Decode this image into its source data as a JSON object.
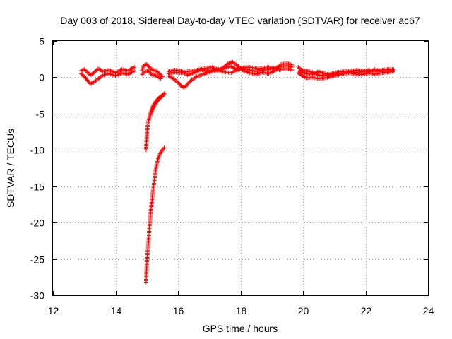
{
  "chart_data": {
    "type": "scatter",
    "title": "Day 003 of 2018, Sidereal Day-to-day VTEC variation (SDTVAR) for receiver ac67",
    "xlabel": "GPS time / hours",
    "ylabel": "SDTVAR / TECUs",
    "xlim": [
      12,
      24
    ],
    "ylim": [
      -30,
      5
    ],
    "xticks": [
      "12",
      "14",
      "16",
      "18",
      "20",
      "22",
      "24"
    ],
    "yticks": [
      "5",
      "0",
      "-5",
      "-10",
      "-15",
      "-20",
      "-25",
      "-30"
    ],
    "grid": true,
    "marker": "+",
    "color": "#ff0000",
    "series": [
      {
        "name": "",
        "tracks": [
          [
            [
              12.9,
              0.9
            ],
            [
              13.0,
              1.1
            ],
            [
              13.1,
              0.7
            ],
            [
              13.2,
              0.3
            ],
            [
              13.3,
              0.6
            ],
            [
              13.45,
              1.2
            ],
            [
              13.6,
              0.8
            ],
            [
              13.8,
              1.0
            ],
            [
              14.0,
              0.6
            ],
            [
              14.2,
              1.1
            ],
            [
              14.4,
              0.9
            ],
            [
              14.6,
              1.4
            ]
          ],
          [
            [
              12.9,
              0.5
            ],
            [
              13.0,
              0.1
            ],
            [
              13.1,
              -0.4
            ],
            [
              13.2,
              -0.9
            ],
            [
              13.3,
              -0.7
            ],
            [
              13.45,
              -0.2
            ],
            [
              13.6,
              0.3
            ],
            [
              13.8,
              0.5
            ],
            [
              14.0,
              0.2
            ],
            [
              14.2,
              0.6
            ],
            [
              14.4,
              0.4
            ],
            [
              14.6,
              0.9
            ]
          ],
          [
            [
              14.85,
              1.0
            ],
            [
              14.9,
              1.6
            ],
            [
              15.0,
              1.8
            ],
            [
              15.1,
              1.3
            ],
            [
              15.2,
              1.0
            ],
            [
              15.3,
              0.9
            ],
            [
              15.4,
              0.5
            ],
            [
              15.5,
              0.1
            ]
          ],
          [
            [
              14.85,
              0.4
            ],
            [
              14.95,
              0.8
            ],
            [
              15.05,
              0.9
            ],
            [
              15.15,
              0.4
            ],
            [
              15.25,
              0.3
            ],
            [
              15.35,
              0.1
            ],
            [
              15.45,
              -0.2
            ]
          ],
          [
            [
              14.98,
              -10.0
            ],
            [
              15.0,
              -8.5
            ],
            [
              15.02,
              -7.0
            ],
            [
              15.05,
              -6.2
            ],
            [
              15.08,
              -5.6
            ],
            [
              15.12,
              -5.0
            ],
            [
              15.16,
              -4.5
            ],
            [
              15.2,
              -4.0
            ],
            [
              15.25,
              -3.6
            ],
            [
              15.3,
              -3.3
            ],
            [
              15.35,
              -3.0
            ],
            [
              15.4,
              -2.8
            ],
            [
              15.46,
              -2.6
            ],
            [
              15.52,
              -2.4
            ],
            [
              15.57,
              -2.2
            ]
          ],
          [
            [
              15.06,
              -6.0
            ],
            [
              15.1,
              -5.4
            ],
            [
              15.15,
              -4.8
            ],
            [
              15.2,
              -4.3
            ],
            [
              15.26,
              -3.8
            ],
            [
              15.32,
              -3.4
            ],
            [
              15.38,
              -3.1
            ],
            [
              15.44,
              -2.8
            ],
            [
              15.5,
              -2.6
            ],
            [
              15.55,
              -2.4
            ]
          ],
          [
            [
              14.98,
              -28.2
            ],
            [
              14.99,
              -27.0
            ],
            [
              15.0,
              -26.0
            ],
            [
              15.01,
              -25.0
            ],
            [
              15.03,
              -24.0
            ],
            [
              15.05,
              -23.0
            ],
            [
              15.07,
              -22.0
            ],
            [
              15.08,
              -21.0
            ],
            [
              15.1,
              -20.0
            ],
            [
              15.12,
              -19.0
            ],
            [
              15.14,
              -18.0
            ],
            [
              15.17,
              -17.0
            ],
            [
              15.19,
              -16.0
            ],
            [
              15.22,
              -15.0
            ],
            [
              15.25,
              -14.0
            ],
            [
              15.28,
              -13.0
            ],
            [
              15.32,
              -12.0
            ],
            [
              15.37,
              -11.2
            ],
            [
              15.43,
              -10.5
            ],
            [
              15.5,
              -10.0
            ],
            [
              15.56,
              -9.7
            ]
          ],
          [
            [
              15.7,
              0.5
            ],
            [
              15.9,
              0.7
            ],
            [
              16.1,
              0.6
            ],
            [
              16.3,
              0.8
            ],
            [
              16.5,
              0.9
            ],
            [
              16.7,
              1.1
            ],
            [
              16.9,
              0.9
            ],
            [
              17.1,
              1.0
            ],
            [
              17.3,
              1.1
            ],
            [
              17.5,
              1.3
            ],
            [
              17.7,
              1.5
            ],
            [
              17.9,
              1.0
            ],
            [
              18.1,
              1.2
            ],
            [
              18.3,
              1.0
            ],
            [
              18.5,
              0.8
            ],
            [
              18.7,
              1.0
            ],
            [
              18.9,
              1.1
            ],
            [
              19.1,
              1.3
            ],
            [
              19.3,
              1.5
            ],
            [
              19.5,
              1.6
            ],
            [
              19.65,
              1.4
            ]
          ],
          [
            [
              15.7,
              0.2
            ],
            [
              15.85,
              -0.2
            ],
            [
              16.0,
              -0.7
            ],
            [
              16.1,
              -1.2
            ],
            [
              16.2,
              -1.4
            ],
            [
              16.3,
              -1.0
            ],
            [
              16.4,
              -0.5
            ],
            [
              16.6,
              0.1
            ],
            [
              16.8,
              0.4
            ],
            [
              17.0,
              0.7
            ],
            [
              17.2,
              0.9
            ],
            [
              17.4,
              1.1
            ],
            [
              17.6,
              1.9
            ],
            [
              17.75,
              2.1
            ],
            [
              17.9,
              1.6
            ],
            [
              18.1,
              0.9
            ],
            [
              18.3,
              0.6
            ],
            [
              18.5,
              0.4
            ],
            [
              18.7,
              0.7
            ],
            [
              18.9,
              0.5
            ],
            [
              19.1,
              0.9
            ],
            [
              19.3,
              1.8
            ],
            [
              19.5,
              1.9
            ],
            [
              19.65,
              1.7
            ]
          ],
          [
            [
              15.7,
              0.8
            ],
            [
              15.9,
              1.0
            ],
            [
              16.1,
              0.9
            ],
            [
              16.3,
              0.3
            ],
            [
              16.5,
              0.6
            ],
            [
              16.8,
              1.2
            ],
            [
              17.1,
              1.4
            ],
            [
              17.4,
              0.8
            ],
            [
              17.7,
              0.6
            ],
            [
              18.0,
              1.3
            ],
            [
              18.3,
              1.4
            ],
            [
              18.6,
              1.2
            ],
            [
              18.9,
              1.4
            ],
            [
              19.2,
              1.0
            ],
            [
              19.5,
              1.2
            ],
            [
              19.65,
              1.0
            ]
          ],
          [
            [
              19.85,
              1.4
            ],
            [
              19.95,
              1.0
            ],
            [
              20.1,
              0.9
            ],
            [
              20.3,
              0.7
            ],
            [
              20.5,
              0.3
            ],
            [
              20.7,
              0.2
            ],
            [
              20.9,
              0.5
            ],
            [
              21.1,
              0.7
            ],
            [
              21.3,
              0.8
            ],
            [
              21.5,
              0.9
            ],
            [
              21.7,
              0.6
            ],
            [
              21.9,
              0.8
            ],
            [
              22.1,
              1.0
            ],
            [
              22.3,
              0.8
            ],
            [
              22.5,
              1.0
            ],
            [
              22.7,
              1.1
            ],
            [
              22.9,
              1.1
            ]
          ],
          [
            [
              19.85,
              0.6
            ],
            [
              19.95,
              0.3
            ],
            [
              20.1,
              -0.1
            ],
            [
              20.3,
              0.0
            ],
            [
              20.5,
              -0.2
            ],
            [
              20.7,
              -0.1
            ],
            [
              20.9,
              0.1
            ],
            [
              21.1,
              0.3
            ],
            [
              21.3,
              0.5
            ],
            [
              21.5,
              0.6
            ],
            [
              21.7,
              0.4
            ],
            [
              21.9,
              0.4
            ],
            [
              22.1,
              0.6
            ],
            [
              22.3,
              0.4
            ],
            [
              22.5,
              0.6
            ],
            [
              22.7,
              0.7
            ],
            [
              22.9,
              0.8
            ]
          ],
          [
            [
              19.9,
              0.9
            ],
            [
              20.1,
              0.5
            ],
            [
              20.3,
              0.4
            ],
            [
              20.5,
              0.8
            ],
            [
              20.7,
              0.5
            ],
            [
              20.9,
              0.3
            ],
            [
              21.1,
              0.5
            ],
            [
              21.3,
              0.6
            ],
            [
              21.5,
              0.7
            ],
            [
              21.7,
              1.0
            ],
            [
              21.9,
              0.9
            ],
            [
              22.1,
              0.7
            ],
            [
              22.3,
              1.1
            ],
            [
              22.5,
              0.8
            ],
            [
              22.7,
              0.9
            ],
            [
              22.9,
              1.0
            ]
          ]
        ]
      }
    ]
  }
}
